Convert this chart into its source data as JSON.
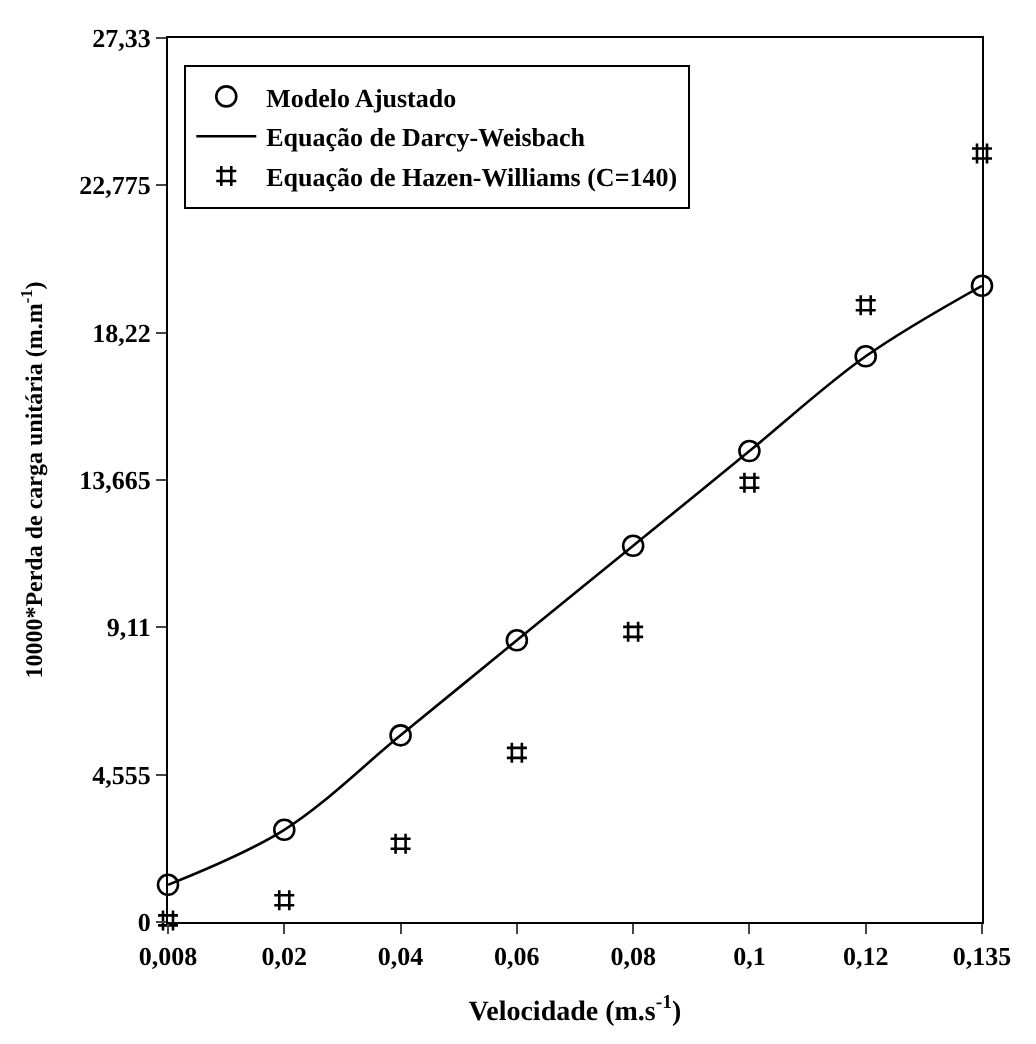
{
  "chart_data": {
    "type": "line",
    "categories": [
      "0,008",
      "0,02",
      "0,04",
      "0,06",
      "0,08",
      "0,1",
      "0,12",
      "0,135"
    ],
    "xlabel": "Velocidade (m.s$^{-1}$)",
    "ylabel": "10000*Perda de carga unitária (m.m$^{-1}$)",
    "ylim": [
      0,
      27.33
    ],
    "yticks": [
      0,
      {
        "value": 4.555,
        "label": "4,555"
      },
      {
        "value": 9.11,
        "label": "9,11"
      },
      {
        "value": 13.665,
        "label": "13,665"
      },
      {
        "value": 18.22,
        "label": "18,22"
      },
      {
        "value": 22.775,
        "label": "22,775"
      },
      {
        "value": 27.33,
        "label": "27,33"
      }
    ],
    "legend": "top left",
    "series": [
      {
        "name": "Modelo Ajustado",
        "type": "scatter",
        "marker": "circle",
        "color": "#000000",
        "values": [
          1.15,
          2.85,
          5.77,
          8.71,
          11.63,
          14.56,
          17.49,
          19.67
        ]
      },
      {
        "name": "Equação de Darcy-Weisbach",
        "marker": "none",
        "line_style": "solid",
        "color": "#000000",
        "values": [
          1.15,
          2.85,
          5.77,
          8.71,
          11.63,
          14.56,
          17.49,
          19.67
        ]
      },
      {
        "name": "Equação de Hazen-Williams (C=140)",
        "type": "scatter",
        "marker": "cross",
        "color": "#000000",
        "values": [
          0.05,
          0.67,
          2.42,
          5.23,
          8.97,
          13.58,
          19.07,
          23.76
        ]
      }
    ]
  }
}
